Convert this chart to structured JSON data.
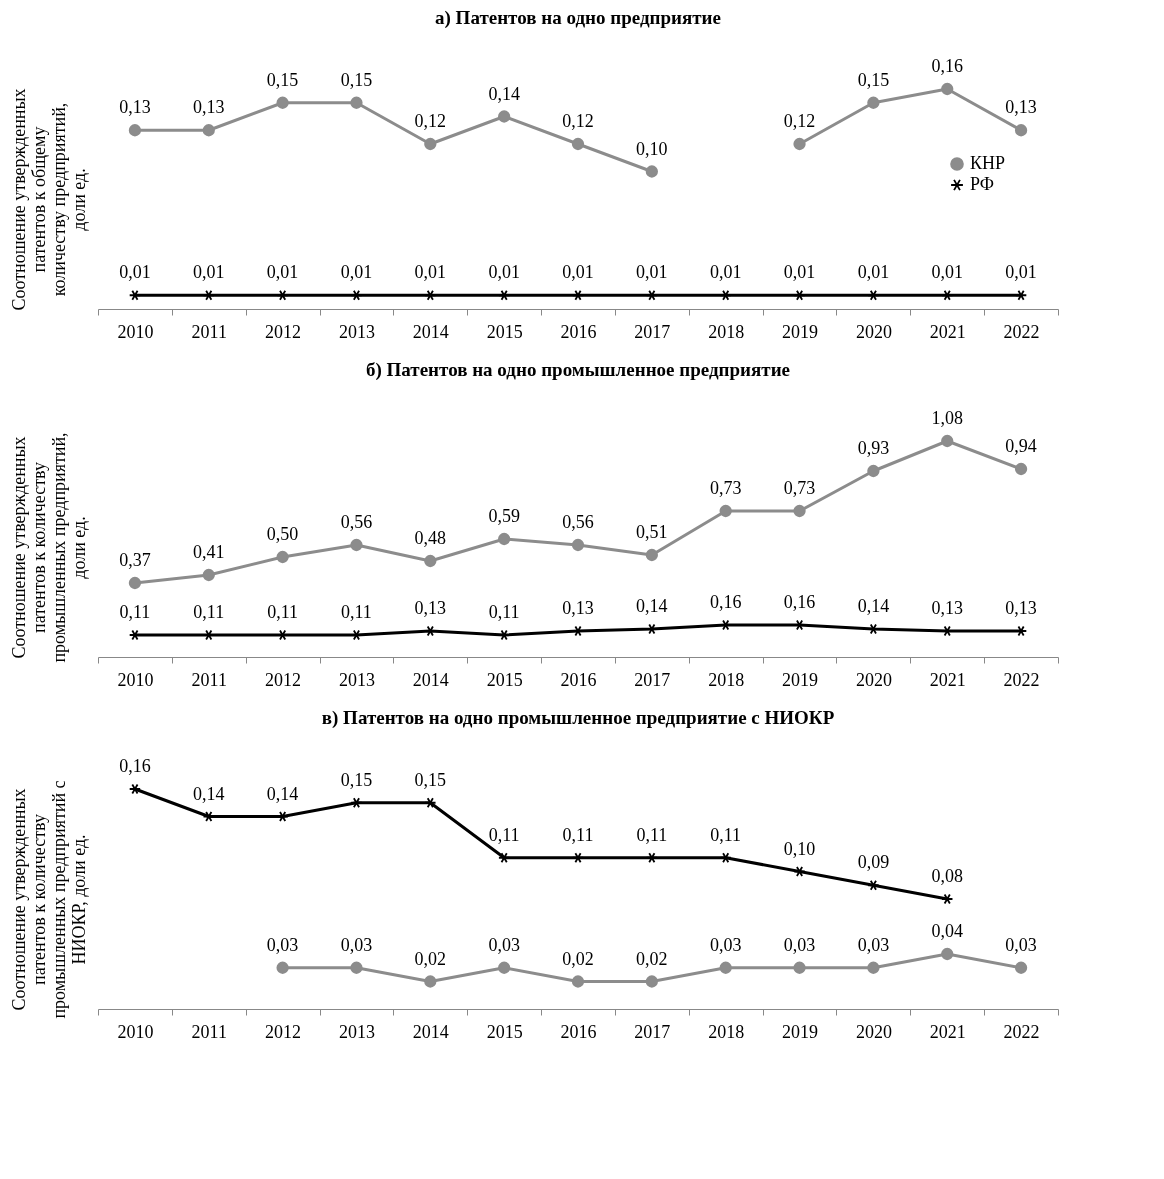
{
  "chart_data": [
    {
      "type": "line",
      "title": "а) Патентов на одно предприятие",
      "ylabel": "Соотношение утвержденных патентов к общему количеству предприятий, доли ед.",
      "categories": [
        "2010",
        "2011",
        "2012",
        "2013",
        "2014",
        "2015",
        "2016",
        "2017",
        "2018",
        "2019",
        "2020",
        "2021",
        "2022"
      ],
      "series": [
        {
          "name": "КНР",
          "color": "#8c8c8c",
          "marker": "circle",
          "values": [
            0.13,
            0.13,
            0.15,
            0.15,
            0.12,
            0.14,
            0.12,
            0.1,
            null,
            0.12,
            0.15,
            0.16,
            0.13
          ],
          "value_labels": [
            "0,13",
            "0,13",
            "0,15",
            "0,15",
            "0,12",
            "0,14",
            "0,12",
            "0,10",
            null,
            "0,12",
            "0,15",
            "0,16",
            "0,13"
          ]
        },
        {
          "name": "РФ",
          "color": "#000000",
          "marker": "cross",
          "values": [
            0.01,
            0.01,
            0.01,
            0.01,
            0.01,
            0.01,
            0.01,
            0.01,
            0.01,
            0.01,
            0.01,
            0.01,
            0.01
          ],
          "value_labels": [
            "0,01",
            "0,01",
            "0,01",
            "0,01",
            "0,01",
            "0,01",
            "0,01",
            "0,01",
            "0,01",
            "0,01",
            "0,01",
            "0,01",
            "0,01"
          ]
        }
      ],
      "legend": "right",
      "grid": false,
      "tick_labels": "x"
    },
    {
      "type": "line",
      "title": "б) Патентов на одно промышленное предприятие",
      "ylabel": "Соотношение утвержденных патентов к количеству промышленных предприятий, доли ед.",
      "categories": [
        "2010",
        "2011",
        "2012",
        "2013",
        "2014",
        "2015",
        "2016",
        "2017",
        "2018",
        "2019",
        "2020",
        "2021",
        "2022"
      ],
      "series": [
        {
          "name": "КНР",
          "color": "#8c8c8c",
          "marker": "circle",
          "values": [
            0.37,
            0.41,
            0.5,
            0.56,
            0.48,
            0.59,
            0.56,
            0.51,
            0.73,
            0.73,
            0.93,
            1.08,
            0.94
          ],
          "value_labels": [
            "0,37",
            "0,41",
            "0,50",
            "0,56",
            "0,48",
            "0,59",
            "0,56",
            "0,51",
            "0,73",
            "0,73",
            "0,93",
            "1,08",
            "0,94"
          ]
        },
        {
          "name": "РФ",
          "color": "#000000",
          "marker": "cross",
          "values": [
            0.11,
            0.11,
            0.11,
            0.11,
            0.13,
            0.11,
            0.13,
            0.14,
            0.16,
            0.16,
            0.14,
            0.13,
            0.13
          ],
          "value_labels": [
            "0,11",
            "0,11",
            "0,11",
            "0,11",
            "0,13",
            "0,11",
            "0,13",
            "0,14",
            "0,16",
            "0,16",
            "0,14",
            "0,13",
            "0,13"
          ]
        }
      ],
      "legend": "right",
      "grid": false,
      "tick_labels": "x"
    },
    {
      "type": "line",
      "title": "в) Патентов на одно промышленное предприятие с НИОКР",
      "ylabel": "Соотношение утвержденных патентов к количеству промышленных предприятий с НИОКР, доли ед.",
      "categories": [
        "2010",
        "2011",
        "2012",
        "2013",
        "2014",
        "2015",
        "2016",
        "2017",
        "2018",
        "2019",
        "2020",
        "2021",
        "2022"
      ],
      "series": [
        {
          "name": "КНР",
          "color": "#8c8c8c",
          "marker": "circle",
          "values": [
            null,
            null,
            0.03,
            0.03,
            0.02,
            0.03,
            0.02,
            0.02,
            0.03,
            0.03,
            0.03,
            0.04,
            0.03
          ],
          "value_labels": [
            null,
            null,
            "0,03",
            "0,03",
            "0,02",
            "0,03",
            "0,02",
            "0,02",
            "0,03",
            "0,03",
            "0,03",
            "0,04",
            "0,03"
          ]
        },
        {
          "name": "РФ",
          "color": "#000000",
          "marker": "cross",
          "values": [
            0.16,
            0.14,
            0.14,
            0.15,
            0.15,
            0.11,
            0.11,
            0.11,
            0.11,
            0.1,
            0.09,
            0.08,
            null
          ],
          "value_labels": [
            "0,16",
            "0,14",
            "0,14",
            "0,15",
            "0,15",
            "0,11",
            "0,11",
            "0,11",
            "0,11",
            "0,10",
            "0,09",
            "0,08",
            null
          ]
        }
      ],
      "legend": "top right",
      "grid": false,
      "tick_labels": "x"
    }
  ]
}
